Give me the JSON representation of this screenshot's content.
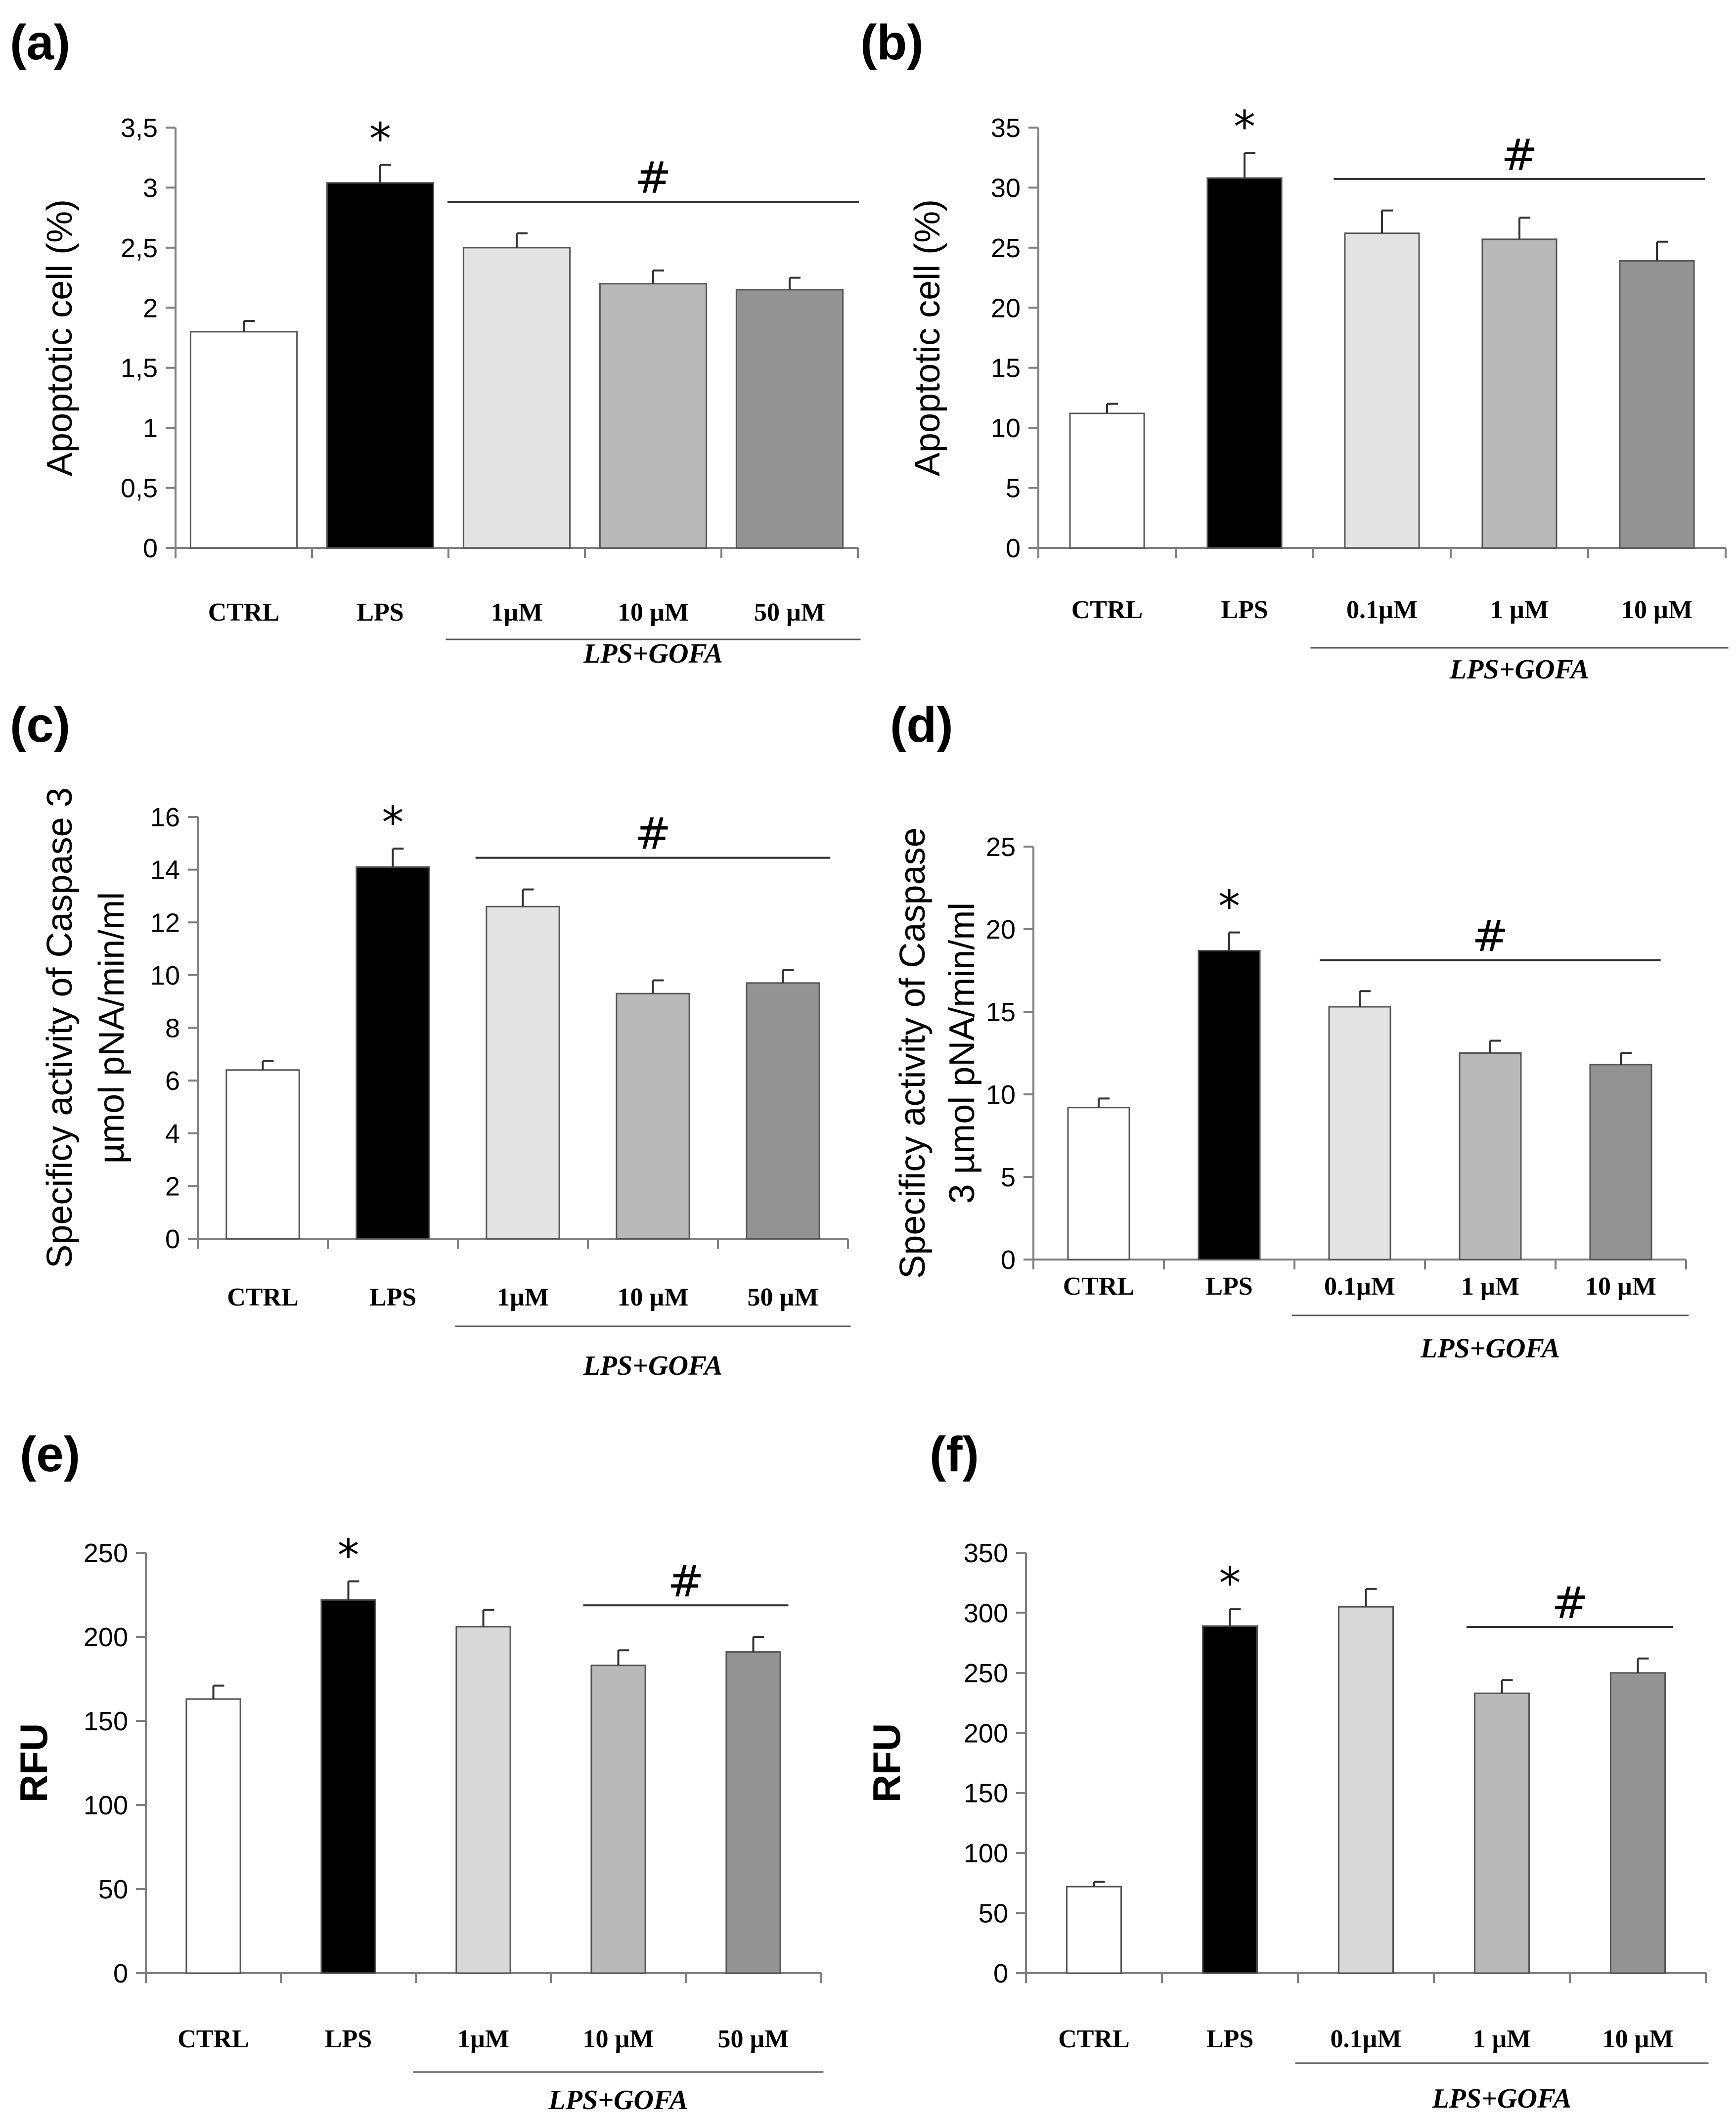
{
  "chart_data": [
    {
      "panel": "(a)",
      "type": "bar",
      "ylabel": "Apoptotic cell (%)",
      "ylabel_style": "normal",
      "ylim": [
        0,
        3.5
      ],
      "yticks": [
        0,
        0.5,
        1,
        1.5,
        2,
        2.5,
        3,
        3.5
      ],
      "ytick_labels": [
        "0",
        "0,5",
        "1",
        "1,5",
        "2",
        "2,5",
        "3",
        "3,5"
      ],
      "categories": [
        "CTRL",
        "LPS",
        "1µM",
        "10 µM",
        "50 µM"
      ],
      "values": [
        1.8,
        3.04,
        2.5,
        2.2,
        2.15
      ],
      "errors": [
        0.09,
        0.15,
        0.12,
        0.11,
        0.1
      ],
      "bar_colors": [
        "#ffffff",
        "#000000",
        "#e3e3e3",
        "#b9b9b9",
        "#939393"
      ],
      "group_label": "LPS+GOFA",
      "group_range": [
        2,
        4
      ],
      "star": {
        "label": "*",
        "index": 1
      },
      "hash": {
        "label": "#",
        "from": 2,
        "to": 4
      }
    },
    {
      "panel": "(b)",
      "type": "bar",
      "ylabel": "Apoptotic cell (%)",
      "ylabel_style": "normal",
      "ylim": [
        0,
        35
      ],
      "yticks": [
        0,
        5,
        10,
        15,
        20,
        25,
        30,
        35
      ],
      "ytick_labels": [
        "0",
        "5",
        "10",
        "15",
        "20",
        "25",
        "30",
        "35"
      ],
      "categories": [
        "CTRL",
        "LPS",
        "0.1µM",
        "1 µM",
        "10 µM"
      ],
      "values": [
        11.2,
        30.8,
        26.2,
        25.7,
        23.9
      ],
      "errors": [
        0.8,
        2.1,
        1.9,
        1.8,
        1.6
      ],
      "bar_colors": [
        "#ffffff",
        "#000000",
        "#e3e3e3",
        "#b9b9b9",
        "#939393"
      ],
      "group_label": "LPS+GOFA",
      "group_range": [
        2,
        4
      ],
      "star": {
        "label": "*",
        "index": 1
      },
      "hash": {
        "label": "#",
        "from": 2,
        "to": 4
      }
    },
    {
      "panel": "(c)",
      "type": "bar",
      "ylabel": [
        "Specificy activity of Caspase 3",
        "µmol pNA/min/ml"
      ],
      "ylabel_style": "normal",
      "ylim": [
        0,
        16
      ],
      "yticks": [
        0,
        2,
        4,
        6,
        8,
        10,
        12,
        14,
        16
      ],
      "ytick_labels": [
        "0",
        "2",
        "4",
        "6",
        "8",
        "10",
        "12",
        "14",
        "16"
      ],
      "categories": [
        "CTRL",
        "LPS",
        "1µM",
        "10 µM",
        "50 µM"
      ],
      "values": [
        6.4,
        14.1,
        12.6,
        9.3,
        9.7
      ],
      "errors": [
        0.35,
        0.7,
        0.65,
        0.5,
        0.5
      ],
      "bar_colors": [
        "#ffffff",
        "#000000",
        "#e3e3e3",
        "#b9b9b9",
        "#939393"
      ],
      "group_label": "LPS+GOFA",
      "group_range": [
        2,
        4
      ],
      "star": {
        "label": "*",
        "index": 1
      },
      "hash": {
        "label": "#",
        "from": 2,
        "to": 4
      }
    },
    {
      "panel": "(d)",
      "type": "bar",
      "ylabel": [
        "Specificy activity of Caspase",
        "3 µmol pNA/min/ml"
      ],
      "ylabel_style": "normal",
      "ylim": [
        0,
        25
      ],
      "yticks": [
        0,
        5,
        10,
        15,
        20,
        25
      ],
      "ytick_labels": [
        "0",
        "5",
        "10",
        "15",
        "20",
        "25"
      ],
      "categories": [
        "CTRL",
        "LPS",
        "0.1µM",
        "1 µM",
        "10 µM"
      ],
      "values": [
        9.2,
        18.7,
        15.3,
        12.5,
        11.8
      ],
      "errors": [
        0.55,
        1.1,
        0.95,
        0.75,
        0.7
      ],
      "bar_colors": [
        "#ffffff",
        "#000000",
        "#e3e3e3",
        "#b9b9b9",
        "#939393"
      ],
      "group_label": "LPS+GOFA",
      "group_range": [
        2,
        4
      ],
      "star": {
        "label": "*",
        "index": 1
      },
      "hash": {
        "label": "#",
        "from": 2,
        "to": 4
      }
    },
    {
      "panel": "(e)",
      "type": "bar",
      "ylabel": "RFU",
      "ylabel_style": "bold",
      "ylim": [
        0,
        250
      ],
      "yticks": [
        0,
        50,
        100,
        150,
        200,
        250
      ],
      "ytick_labels": [
        "0",
        "50",
        "100",
        "150",
        "200",
        "250"
      ],
      "categories": [
        "CTRL",
        "LPS",
        "1µM",
        "10 µM",
        "50 µM"
      ],
      "values": [
        163,
        222,
        206,
        183,
        191
      ],
      "errors": [
        8,
        11,
        10,
        9,
        9
      ],
      "bar_colors": [
        "#ffffff",
        "#000000",
        "#d8d8d8",
        "#b9b9b9",
        "#939393"
      ],
      "group_label": "LPS+GOFA",
      "group_range": [
        2,
        4
      ],
      "star": {
        "label": "*",
        "index": 1
      },
      "hash": {
        "label": "#",
        "from": 3,
        "to": 4
      }
    },
    {
      "panel": "(f)",
      "type": "bar",
      "ylabel": "RFU",
      "ylabel_style": "bold",
      "ylim": [
        0,
        350
      ],
      "yticks": [
        0,
        50,
        100,
        150,
        200,
        250,
        300,
        350
      ],
      "ytick_labels": [
        "0",
        "50",
        "100",
        "150",
        "200",
        "250",
        "300",
        "350"
      ],
      "categories": [
        "CTRL",
        "LPS",
        "0.1µM",
        "1 µM",
        "10 µM"
      ],
      "values": [
        72,
        289,
        305,
        233,
        250
      ],
      "errors": [
        4,
        14,
        15,
        11,
        12
      ],
      "bar_colors": [
        "#ffffff",
        "#000000",
        "#d8d8d8",
        "#b9b9b9",
        "#939393"
      ],
      "group_label": "LPS+GOFA",
      "group_range": [
        2,
        4
      ],
      "star": {
        "label": "*",
        "index": 1
      },
      "hash": {
        "label": "#",
        "from": 3,
        "to": 4
      }
    }
  ]
}
